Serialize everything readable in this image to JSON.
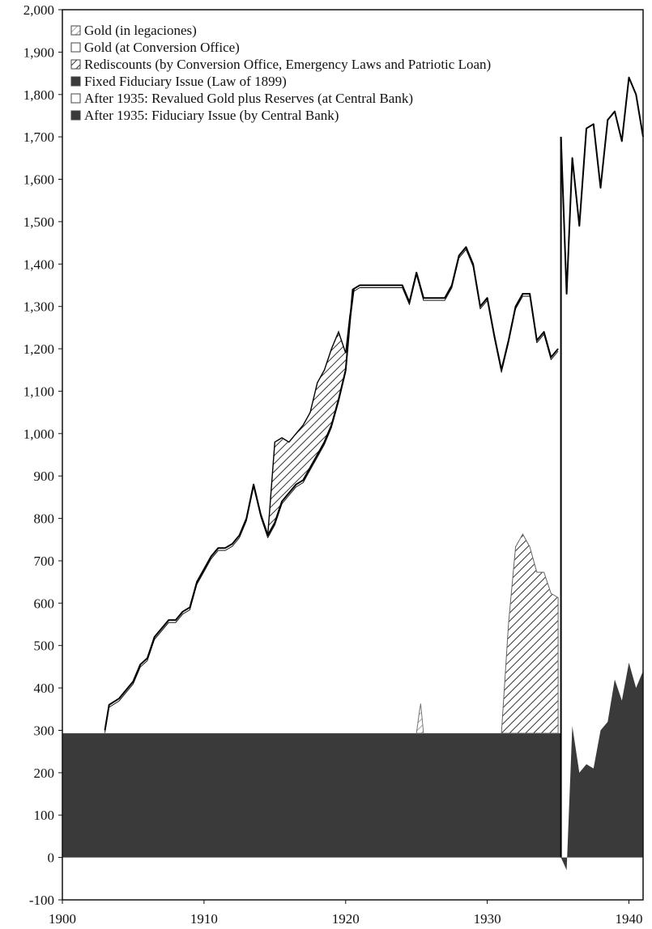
{
  "chart_data": {
    "type": "area",
    "title": "",
    "xlabel": "",
    "ylabel": "",
    "xlim": [
      1900,
      1941
    ],
    "ylim": [
      -100,
      2000
    ],
    "grid": false,
    "legend_position": "top-left",
    "x_ticks": [
      "1900",
      "1910",
      "1920",
      "1930",
      "1940"
    ],
    "y_ticks": [
      "-100",
      "0",
      "100",
      "200",
      "300",
      "400",
      "500",
      "600",
      "700",
      "800",
      "900",
      "1,000",
      "1,100",
      "1,200",
      "1,300",
      "1,400",
      "1,500",
      "1,600",
      "1,700",
      "1,800",
      "1,900",
      "2,000"
    ],
    "colors": {
      "dark": "#3a3a3a",
      "line": "#000000",
      "hatch": "#555555",
      "frame": "#111111"
    },
    "series": [
      {
        "name": "Gold (in legaciones)",
        "style": "hatch-light",
        "legend": true,
        "x": [
          1925.0,
          1925.2,
          1925.3,
          1925.5
        ],
        "y": [
          0,
          50,
          70,
          0
        ]
      },
      {
        "name": "Gold (at Conversion Office)",
        "style": "outline",
        "legend": true,
        "x": [
          1903.0,
          1903.3,
          1904.0,
          1904.5,
          1905.0,
          1905.5,
          1906.0,
          1906.5,
          1907.0,
          1907.5,
          1908.0,
          1908.5,
          1909.0,
          1909.5,
          1910.0,
          1910.5,
          1911.0,
          1911.5,
          1912.0,
          1912.5,
          1913.0,
          1913.5,
          1914.0,
          1914.5,
          1915.0,
          1915.5,
          1916.0,
          1916.5,
          1917.0,
          1917.5,
          1918.0,
          1918.5,
          1919.0,
          1919.5,
          1920.0,
          1920.5,
          1921.0,
          1922.0,
          1923.0,
          1924.0,
          1924.5,
          1925.0,
          1925.5,
          1926.0,
          1927.0,
          1927.5,
          1928.0,
          1928.5,
          1929.0,
          1929.5,
          1930.0,
          1930.5,
          1931.0,
          1931.5,
          1932.0,
          1932.5,
          1933.0,
          1933.5,
          1934.0,
          1934.5,
          1935.0
        ],
        "y": [
          300,
          360,
          375,
          395,
          415,
          455,
          470,
          520,
          540,
          560,
          560,
          580,
          590,
          650,
          680,
          710,
          730,
          730,
          740,
          760,
          800,
          880,
          810,
          760,
          790,
          840,
          860,
          880,
          890,
          920,
          950,
          980,
          1020,
          1080,
          1150,
          1340,
          1350,
          1350,
          1350,
          1350,
          1310,
          1380,
          1320,
          1320,
          1320,
          1350,
          1420,
          1440,
          1400,
          1300,
          1320,
          1230,
          1150,
          1220,
          1300,
          1330,
          1330,
          1220,
          1240,
          1180,
          1200
        ]
      },
      {
        "name": "Rediscounts (by Conversion Office, Emergency Laws and Patriotic Loan)",
        "style": "hatch-dark",
        "legend": true,
        "x": [
          1914.5,
          1915.0,
          1915.5,
          1916.0,
          1916.5,
          1917.0,
          1917.5,
          1918.0,
          1918.5,
          1919.0,
          1919.5,
          1920.0,
          1920.3,
          1920.6,
          1931.0,
          1931.5,
          1932.0,
          1932.5,
          1933.0,
          1933.5,
          1934.0,
          1934.5,
          1935.0
        ],
        "y": [
          0,
          190,
          150,
          120,
          120,
          130,
          130,
          170,
          170,
          180,
          160,
          40,
          15,
          0,
          0,
          260,
          440,
          470,
          440,
          380,
          380,
          330,
          320
        ]
      },
      {
        "name": "Fixed Fiduciary Issue (Law of 1899)",
        "style": "solid-dark",
        "legend": true,
        "x": [
          1900,
          1935.2
        ],
        "y": [
          293,
          293
        ]
      },
      {
        "name": "After 1935: Revalued Gold plus Reserves (at Central Bank)",
        "style": "outline",
        "legend": true,
        "x": [
          1935.2,
          1935.6,
          1936.0,
          1936.5,
          1937.0,
          1937.5,
          1938.0,
          1938.5,
          1939.0,
          1939.5,
          1940.0,
          1940.5,
          1941.0
        ],
        "y": [
          1700,
          1330,
          1650,
          1490,
          1720,
          1730,
          1580,
          1740,
          1760,
          1690,
          1840,
          1800,
          1700
        ]
      },
      {
        "name": "After 1935: Fiduciary Issue (by Central Bank)",
        "style": "solid-dark",
        "legend": true,
        "x": [
          1935.2,
          1935.6,
          1936.0,
          1936.5,
          1937.0,
          1937.5,
          1938.0,
          1938.5,
          1939.0,
          1939.5,
          1940.0,
          1940.5,
          1941.0
        ],
        "y": [
          0,
          -30,
          310,
          200,
          220,
          210,
          300,
          320,
          420,
          370,
          460,
          400,
          440
        ]
      }
    ]
  }
}
